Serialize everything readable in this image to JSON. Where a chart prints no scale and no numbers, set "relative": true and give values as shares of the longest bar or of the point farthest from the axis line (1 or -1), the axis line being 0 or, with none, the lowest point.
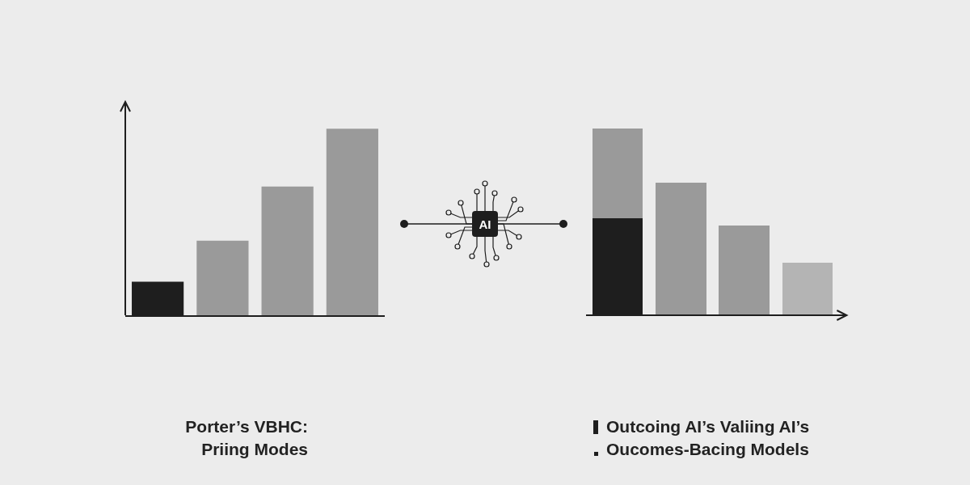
{
  "chart_data": [
    {
      "type": "bar",
      "title": "Porter’s VBHC:\nPriing Modes",
      "relative": true,
      "categories": [
        null,
        null,
        null,
        null
      ],
      "values": [
        0.18,
        0.4,
        0.69,
        1
      ],
      "colors": [
        "#1e1e1e",
        "#9a9a9a",
        "#9a9a9a",
        "#9a9a9a"
      ]
    },
    {
      "type": "other",
      "annotations": [
        "AI"
      ]
    },
    {
      "type": "bar",
      "relative": true,
      "stacked": true,
      "categories": [
        null,
        null,
        null,
        null
      ],
      "annotations": [
        "Outcoing AI’s Valiing AI’s",
        "Oucomes-Bacing Models"
      ],
      "series": [
        {
          "color": "#1e1e1e",
          "values": [
            0.52,
            null,
            null,
            null
          ]
        },
        {
          "colors": [
            "#9a9a9a",
            "#9a9a9a",
            "#9a9a9a",
            "#b4b4b4"
          ],
          "values": [
            0.48,
            0.71,
            0.48,
            0.28
          ]
        }
      ]
    }
  ]
}
